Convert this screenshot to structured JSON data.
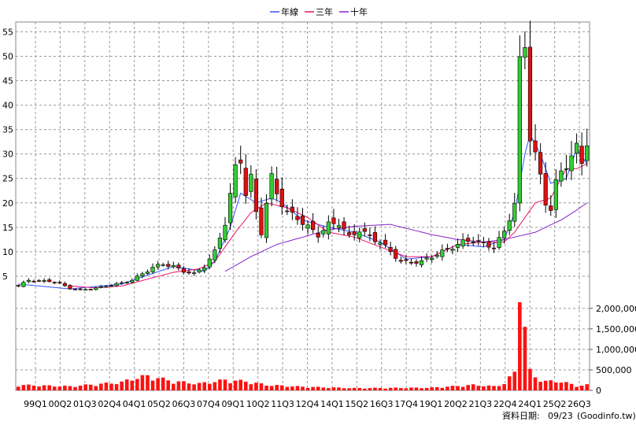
{
  "chart_data": {
    "type": "candlestick",
    "legend": [
      {
        "name": "年線",
        "color": "#3355ff"
      },
      {
        "name": "三年",
        "color": "#ee1166"
      },
      {
        "name": "十年",
        "color": "#8822cc"
      }
    ],
    "legend_position": "top-center",
    "grid": true,
    "price_axis": {
      "ticks": [
        5,
        10,
        15,
        20,
        25,
        30,
        35,
        40,
        45,
        50,
        55
      ],
      "range": [
        0,
        57
      ]
    },
    "volume_axis": {
      "ticks": [
        "0",
        "500,000",
        "1,000,000",
        "1,500,000",
        "2,000,000"
      ],
      "range": [
        0,
        2150000
      ]
    },
    "x_tick_labels": [
      "99Q1",
      "00Q2",
      "01Q3",
      "02Q4",
      "04Q1",
      "05Q2",
      "06Q3",
      "07Q4",
      "09Q1",
      "10Q2",
      "11Q3",
      "12Q4",
      "14Q1",
      "15Q2",
      "16Q3",
      "17Q4",
      "19Q1",
      "20Q2",
      "21Q3",
      "22Q4",
      "24Q1",
      "25Q2",
      "26Q3"
    ],
    "up_color": "#33cc33",
    "down_color": "#dd1111",
    "volume_color": "#ff1111",
    "quarters_count": 111,
    "price_keyframes": [
      [
        0,
        3.0
      ],
      [
        2,
        4.2
      ],
      [
        4,
        4.0
      ],
      [
        6,
        4.0
      ],
      [
        8,
        3.5
      ],
      [
        10,
        2.5
      ],
      [
        12,
        2.2
      ],
      [
        14,
        2.4
      ],
      [
        16,
        2.8
      ],
      [
        18,
        3.2
      ],
      [
        20,
        3.6
      ],
      [
        22,
        4.2
      ],
      [
        24,
        5.5
      ],
      [
        26,
        6.8
      ],
      [
        28,
        7.5
      ],
      [
        30,
        7.0
      ],
      [
        32,
        6.0
      ],
      [
        34,
        5.5
      ],
      [
        36,
        7.0
      ],
      [
        38,
        10.0
      ],
      [
        40,
        16.0
      ],
      [
        42,
        27.0
      ],
      [
        43,
        29.0
      ],
      [
        44,
        22.0
      ],
      [
        45,
        25.0
      ],
      [
        46,
        18.0
      ],
      [
        47,
        14.0
      ],
      [
        48,
        20.0
      ],
      [
        49,
        25.0
      ],
      [
        50,
        22.0
      ],
      [
        51,
        20.0
      ],
      [
        52,
        18.0
      ],
      [
        54,
        17.0
      ],
      [
        56,
        15.0
      ],
      [
        58,
        13.5
      ],
      [
        60,
        15.5
      ],
      [
        62,
        16.0
      ],
      [
        64,
        13.0
      ],
      [
        66,
        14.5
      ],
      [
        68,
        13.0
      ],
      [
        70,
        12.0
      ],
      [
        72,
        10.0
      ],
      [
        74,
        8.0
      ],
      [
        76,
        7.8
      ],
      [
        78,
        8.0
      ],
      [
        80,
        9.0
      ],
      [
        82,
        10.0
      ],
      [
        84,
        11.0
      ],
      [
        86,
        12.0
      ],
      [
        88,
        12.5
      ],
      [
        90,
        11.5
      ],
      [
        92,
        11.0
      ],
      [
        94,
        14.0
      ],
      [
        96,
        20.0
      ],
      [
        97,
        48.0
      ],
      [
        98,
        52.0
      ],
      [
        99,
        34.0
      ],
      [
        100,
        30.0
      ],
      [
        101,
        25.0
      ],
      [
        102,
        20.0
      ],
      [
        103,
        19.0
      ],
      [
        104,
        24.0
      ],
      [
        106,
        28.0
      ],
      [
        107,
        30.0
      ],
      [
        108,
        31.0
      ],
      [
        109,
        28.0
      ],
      [
        110,
        33.0
      ]
    ],
    "volume_keyframes": [
      [
        0,
        120000
      ],
      [
        10,
        90000
      ],
      [
        20,
        180000
      ],
      [
        22,
        260000
      ],
      [
        25,
        320000
      ],
      [
        28,
        250000
      ],
      [
        30,
        200000
      ],
      [
        35,
        150000
      ],
      [
        40,
        230000
      ],
      [
        44,
        200000
      ],
      [
        48,
        120000
      ],
      [
        55,
        80000
      ],
      [
        65,
        50000
      ],
      [
        80,
        60000
      ],
      [
        88,
        120000
      ],
      [
        92,
        90000
      ],
      [
        94,
        150000
      ],
      [
        96,
        400000
      ],
      [
        97,
        2150000
      ],
      [
        98,
        1550000
      ],
      [
        99,
        420000
      ],
      [
        100,
        300000
      ],
      [
        102,
        200000
      ],
      [
        105,
        200000
      ],
      [
        108,
        100000
      ],
      [
        110,
        120000
      ]
    ],
    "moving_average_keyframes": {
      "年線": [
        [
          0,
          3.4
        ],
        [
          10,
          2.4
        ],
        [
          20,
          3.4
        ],
        [
          30,
          7.0
        ],
        [
          36,
          6.0
        ],
        [
          38,
          8.0
        ],
        [
          41,
          15.0
        ],
        [
          43,
          22.0
        ],
        [
          46,
          20.0
        ],
        [
          49,
          21.0
        ],
        [
          51,
          20.0
        ],
        [
          55,
          16.5
        ],
        [
          60,
          15.0
        ],
        [
          65,
          14.0
        ],
        [
          70,
          12.0
        ],
        [
          75,
          8.5
        ],
        [
          80,
          9.0
        ],
        [
          85,
          11.5
        ],
        [
          90,
          11.0
        ],
        [
          94,
          12.5
        ],
        [
          96,
          18.0
        ],
        [
          97,
          24.0
        ],
        [
          98,
          30.0
        ],
        [
          99,
          34.0
        ],
        [
          101,
          30.0
        ],
        [
          103,
          24.0
        ],
        [
          106,
          25.0
        ],
        [
          108,
          31.0
        ],
        [
          110,
          28.0
        ]
      ],
      "三年": [
        [
          10,
          3.0
        ],
        [
          15,
          2.6
        ],
        [
          20,
          3.0
        ],
        [
          30,
          5.8
        ],
        [
          35,
          6.5
        ],
        [
          38,
          8.0
        ],
        [
          42,
          14.0
        ],
        [
          45,
          18.0
        ],
        [
          48,
          20.0
        ],
        [
          52,
          19.0
        ],
        [
          56,
          17.0
        ],
        [
          60,
          14.0
        ],
        [
          65,
          13.0
        ],
        [
          70,
          11.0
        ],
        [
          75,
          9.0
        ],
        [
          80,
          9.0
        ],
        [
          85,
          11.5
        ],
        [
          90,
          12.0
        ],
        [
          94,
          12.0
        ],
        [
          96,
          14.0
        ],
        [
          98,
          17.0
        ],
        [
          100,
          20.0
        ],
        [
          103,
          21.0
        ],
        [
          106,
          27.0
        ],
        [
          108,
          27.0
        ],
        [
          110,
          28.0
        ]
      ],
      "十年": [
        [
          40,
          6.0
        ],
        [
          45,
          9.0
        ],
        [
          50,
          11.5
        ],
        [
          55,
          13.0
        ],
        [
          60,
          14.5
        ],
        [
          65,
          15.2
        ],
        [
          70,
          15.5
        ],
        [
          72,
          15.6
        ],
        [
          75,
          14.8
        ],
        [
          80,
          13.5
        ],
        [
          85,
          12.5
        ],
        [
          90,
          12.0
        ],
        [
          94,
          12.5
        ],
        [
          96,
          13.0
        ],
        [
          100,
          14.0
        ],
        [
          105,
          16.5
        ],
        [
          108,
          18.5
        ],
        [
          110,
          20.0
        ]
      ]
    }
  },
  "footer": {
    "label": "資料日期:",
    "date": "09/23",
    "source": "(Goodinfo.tw)"
  }
}
